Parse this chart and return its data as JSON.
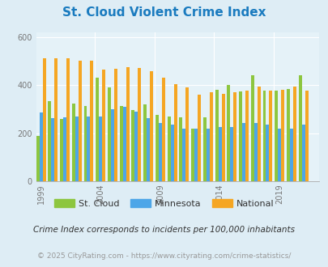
{
  "title": "St. Cloud Violent Crime Index",
  "title_color": "#1a7bbf",
  "subtitle": "Crime Index corresponds to incidents per 100,000 inhabitants",
  "footnote": "© 2025 CityRating.com - https://www.cityrating.com/crime-statistics/",
  "years": [
    1999,
    2000,
    2001,
    2002,
    2003,
    2004,
    2005,
    2006,
    2007,
    2008,
    2009,
    2010,
    2011,
    2012,
    2013,
    2014,
    2015,
    2016,
    2017,
    2018,
    2019,
    2020,
    2021
  ],
  "st_cloud": [
    190,
    335,
    260,
    325,
    315,
    430,
    390,
    315,
    295,
    320,
    275,
    270,
    265,
    220,
    265,
    380,
    400,
    375,
    440,
    378,
    378,
    385,
    440
  ],
  "minnesota": [
    285,
    263,
    265,
    270,
    270,
    270,
    300,
    310,
    290,
    263,
    243,
    235,
    218,
    220,
    220,
    225,
    225,
    243,
    243,
    235,
    218,
    220,
    235
  ],
  "national": [
    510,
    510,
    510,
    500,
    500,
    463,
    469,
    474,
    472,
    458,
    432,
    405,
    390,
    362,
    370,
    363,
    370,
    378,
    395,
    378,
    380,
    395,
    378
  ],
  "st_cloud_color": "#8dc63f",
  "minnesota_color": "#4da6e8",
  "national_color": "#f5a623",
  "bg_color": "#deedf5",
  "plot_bg_color": "#e5f2f8",
  "ylim": [
    0,
    620
  ],
  "yticks": [
    0,
    200,
    400,
    600
  ],
  "xtick_years": [
    1999,
    2004,
    2009,
    2014,
    2019
  ],
  "bar_width": 0.27,
  "figsize": [
    4.06,
    3.3
  ],
  "dpi": 100
}
